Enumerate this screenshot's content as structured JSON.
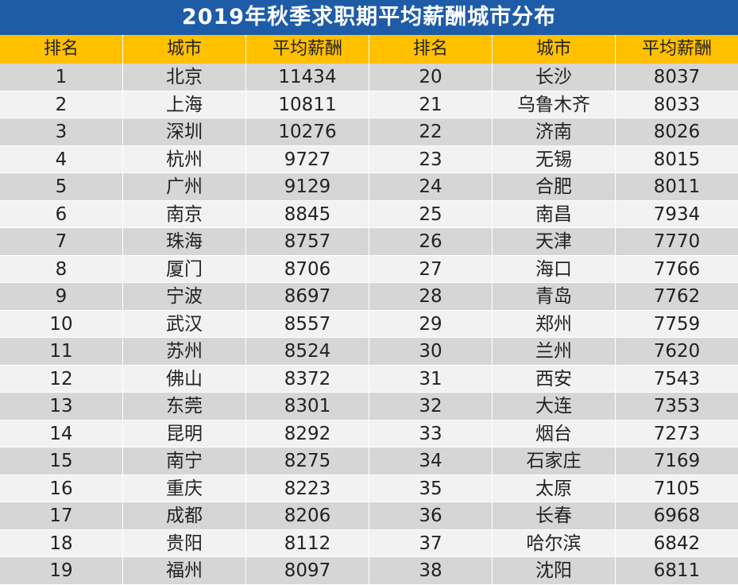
{
  "title": "2019年秋季求职期平均薪酬城市分布",
  "headers": [
    "排名",
    "城市",
    "平均薪酬",
    "排名",
    "城市",
    "平均薪酬"
  ],
  "rows": [
    [
      "1",
      "北京",
      "11434",
      "20",
      "长沙",
      "8037"
    ],
    [
      "2",
      "上海",
      "10811",
      "21",
      "乌鲁木齐",
      "8033"
    ],
    [
      "3",
      "深圳",
      "10276",
      "22",
      "济南",
      "8026"
    ],
    [
      "4",
      "杭州",
      "9727",
      "23",
      "无锡",
      "8015"
    ],
    [
      "5",
      "广州",
      "9129",
      "24",
      "合肥",
      "8011"
    ],
    [
      "6",
      "南京",
      "8845",
      "25",
      "南昌",
      "7934"
    ],
    [
      "7",
      "珠海",
      "8757",
      "26",
      "天津",
      "7770"
    ],
    [
      "8",
      "厦门",
      "8706",
      "27",
      "海口",
      "7766"
    ],
    [
      "9",
      "宁波",
      "8697",
      "28",
      "青岛",
      "7762"
    ],
    [
      "10",
      "武汉",
      "8557",
      "29",
      "郑州",
      "7759"
    ],
    [
      "11",
      "苏州",
      "8524",
      "30",
      "兰州",
      "7620"
    ],
    [
      "12",
      "佛山",
      "8372",
      "31",
      "西安",
      "7543"
    ],
    [
      "13",
      "东莞",
      "8301",
      "32",
      "大连",
      "7353"
    ],
    [
      "14",
      "昆明",
      "8292",
      "33",
      "烟台",
      "7273"
    ],
    [
      "15",
      "南宁",
      "8275",
      "34",
      "石家庄",
      "7169"
    ],
    [
      "16",
      "重庆",
      "8223",
      "35",
      "太原",
      "7105"
    ],
    [
      "17",
      "成都",
      "8206",
      "36",
      "长春",
      "6968"
    ],
    [
      "18",
      "贵阳",
      "8112",
      "37",
      "哈尔滨",
      "6842"
    ],
    [
      "19",
      "福州",
      "8097",
      "38",
      "沈阳",
      "6811"
    ]
  ],
  "colors": {
    "title_bg": "#1f5ca8",
    "header_bg": "#ffc000",
    "row_dark": "#d6d6d6",
    "row_light": "#f2f2f2"
  }
}
